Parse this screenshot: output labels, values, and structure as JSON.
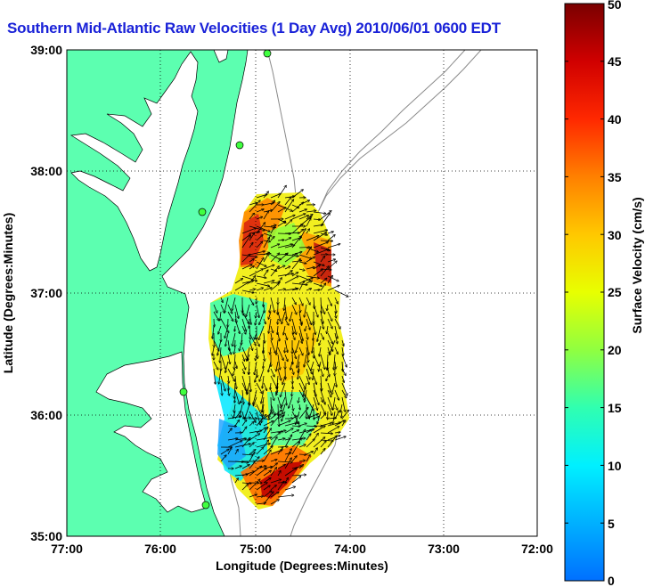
{
  "title": "Southern Mid-Atlantic Raw Velocities (1 Day Avg) 2010/06/01 0600 EDT",
  "x_axis": {
    "label": "Longitude (Degrees:Minutes)",
    "ticks": [
      "77:00",
      "76:00",
      "75:00",
      "74:00",
      "73:00",
      "72:00"
    ]
  },
  "y_axis": {
    "label": "Latitude (Degrees:Minutes)",
    "ticks": [
      "39:00",
      "38:00",
      "37:00",
      "36:00",
      "35:00"
    ]
  },
  "colorbar": {
    "label": "Surface Velocity (cm/s)",
    "ticks": [
      "50",
      "45",
      "40",
      "35",
      "30",
      "25",
      "20",
      "15",
      "10",
      "5",
      "0"
    ],
    "colors": [
      "#0080ff",
      "#00c0ff",
      "#00ffe0",
      "#40ff80",
      "#c0ff20",
      "#ffff00",
      "#ffc000",
      "#ff7000",
      "#ff2000",
      "#c00000",
      "#7a0000"
    ]
  },
  "map": {
    "land_color": "#5cffb0",
    "water_color": "#ffffff",
    "grid": "dotted",
    "lon_range": [
      "77:00",
      "72:00"
    ],
    "lat_range": [
      "35:00",
      "39:00"
    ]
  }
}
